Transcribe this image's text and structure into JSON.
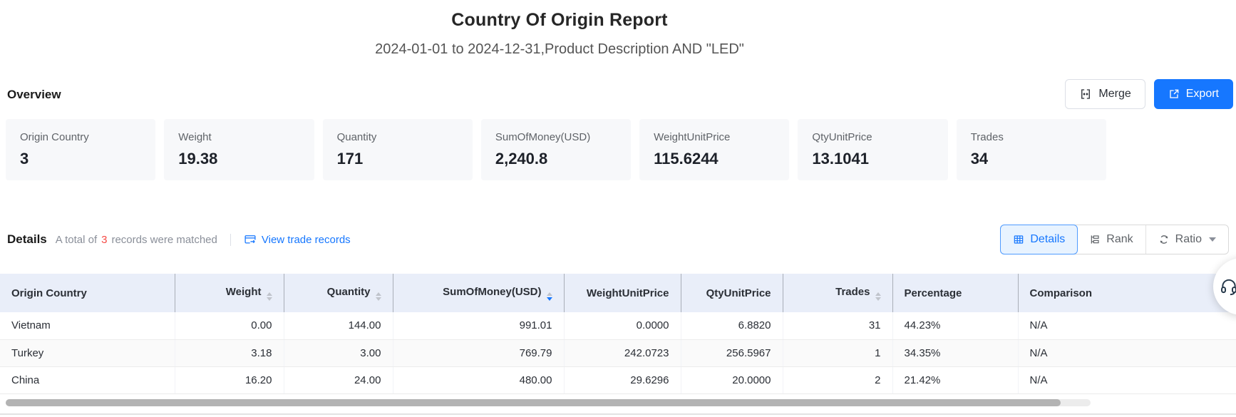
{
  "page": {
    "title": "Country Of Origin Report",
    "subtitle": "2024-01-01 to 2024-12-31,Product Description AND \"LED\""
  },
  "toolbar": {
    "merge_label": "Merge",
    "export_label": "Export"
  },
  "overview": {
    "heading": "Overview",
    "cards": [
      {
        "label": "Origin Country",
        "value": "3"
      },
      {
        "label": "Weight",
        "value": "19.38"
      },
      {
        "label": "Quantity",
        "value": "171"
      },
      {
        "label": "SumOfMoney(USD)",
        "value": "2,240.8"
      },
      {
        "label": "WeightUnitPrice",
        "value": "115.6244"
      },
      {
        "label": "QtyUnitPrice",
        "value": "13.1041"
      },
      {
        "label": "Trades",
        "value": "34"
      }
    ]
  },
  "details": {
    "heading": "Details",
    "total_prefix": "A total of",
    "total_count": "3",
    "total_suffix": "records were matched",
    "view_trade_records": "View trade records",
    "view_modes": [
      {
        "label": "Details",
        "active": true
      },
      {
        "label": "Rank",
        "active": false
      },
      {
        "label": "Ratio",
        "active": false
      }
    ]
  },
  "table": {
    "columns": [
      {
        "label": "Origin Country",
        "sortable": false,
        "sort": null
      },
      {
        "label": "Weight",
        "sortable": true,
        "sort": null
      },
      {
        "label": "Quantity",
        "sortable": true,
        "sort": null
      },
      {
        "label": "SumOfMoney(USD)",
        "sortable": true,
        "sort": "desc"
      },
      {
        "label": "WeightUnitPrice",
        "sortable": false,
        "sort": null
      },
      {
        "label": "QtyUnitPrice",
        "sortable": false,
        "sort": null
      },
      {
        "label": "Trades",
        "sortable": true,
        "sort": null
      },
      {
        "label": "Percentage",
        "sortable": false,
        "sort": null
      },
      {
        "label": "Comparison",
        "sortable": false,
        "sort": null
      }
    ],
    "rows": [
      [
        "Vietnam",
        "0.00",
        "144.00",
        "991.01",
        "0.0000",
        "6.8820",
        "31",
        "44.23%",
        "N/A"
      ],
      [
        "Turkey",
        "3.18",
        "3.00",
        "769.79",
        "242.0723",
        "256.5967",
        "1",
        "34.35%",
        "N/A"
      ],
      [
        "China",
        "16.20",
        "24.00",
        "480.00",
        "29.6296",
        "20.0000",
        "2",
        "21.42%",
        "N/A"
      ]
    ]
  },
  "colors": {
    "primary": "#1677ff",
    "export_bg": "#1677ff",
    "count_red": "#f54a45",
    "table_header_bg": "#e9eef9",
    "active_tab_bg": "#e8f3ff",
    "active_tab_border": "#4f9bff"
  }
}
